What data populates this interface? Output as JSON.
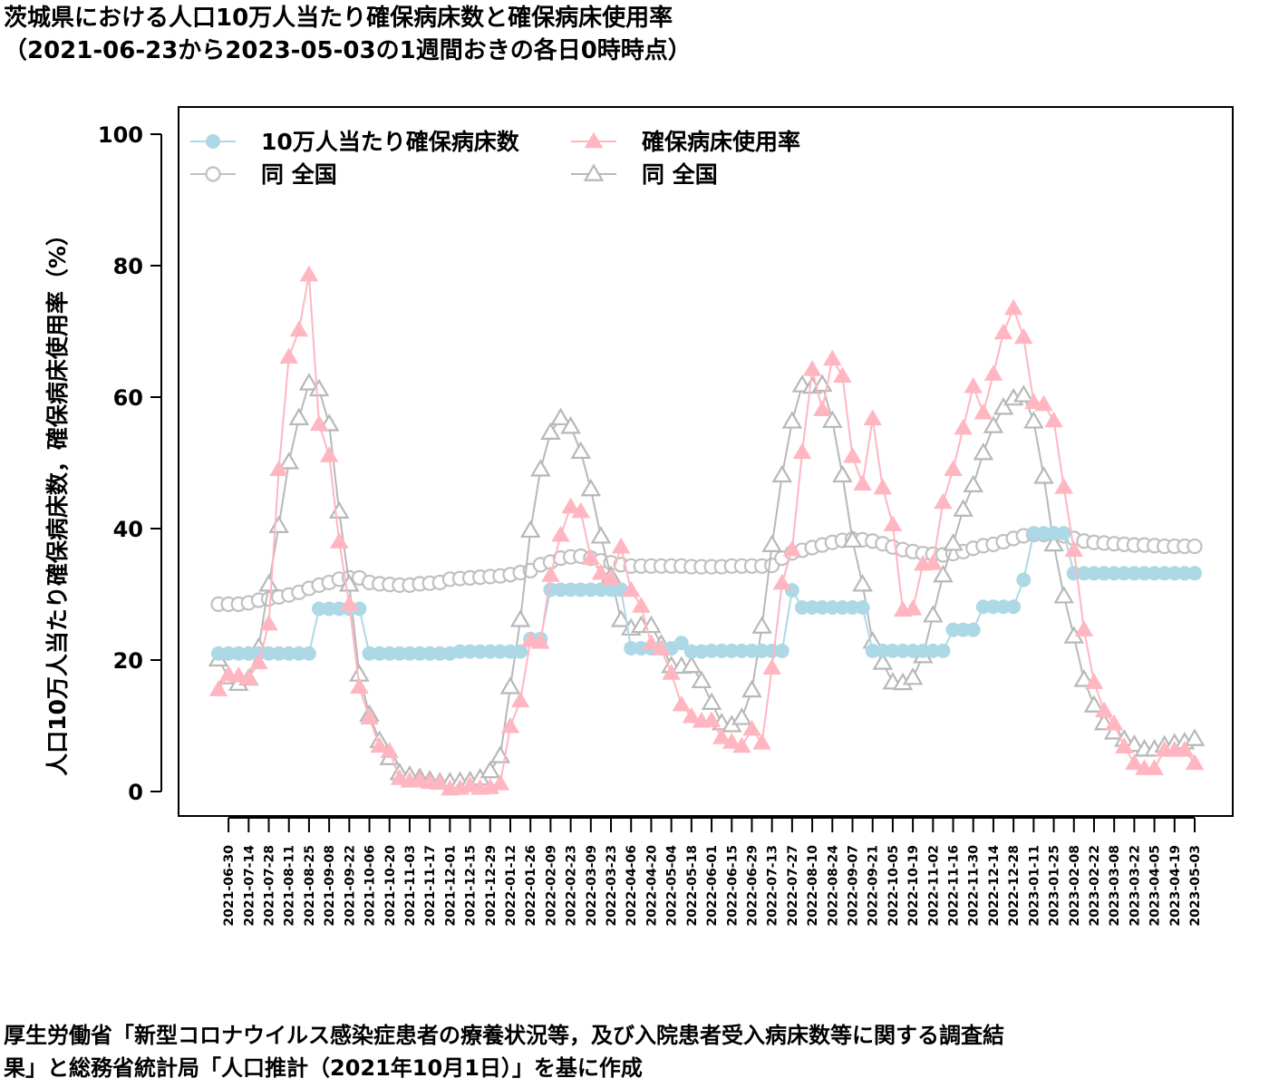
{
  "title": "茨城県における人口10万人当たり確保病床数と確保病床使用率",
  "subtitle": "（2021-06-23から2023-05-03の1週間おきの各日0時時点）",
  "caption": {
    "line1": "厚生労働省「新型コロナウイルス感染症患者の療養状況等，及び入院患者受入病床数等に関する調査結",
    "line2": "果」と総務省統計局「人口推計（2021年10月1日）」を基に作成"
  },
  "chart_data": {
    "type": "line",
    "ylabel": "人口10万人当たり確保病床数，確保病床使用率（%）",
    "ylim": [
      0,
      100
    ],
    "yticks": [
      0,
      20,
      40,
      60,
      80,
      100
    ],
    "grid": false,
    "legend_position": "top-left",
    "x": [
      "2021-06-23",
      "2021-06-30",
      "2021-07-07",
      "2021-07-14",
      "2021-07-21",
      "2021-07-28",
      "2021-08-04",
      "2021-08-11",
      "2021-08-18",
      "2021-08-25",
      "2021-09-01",
      "2021-09-08",
      "2021-09-15",
      "2021-09-22",
      "2021-09-29",
      "2021-10-06",
      "2021-10-13",
      "2021-10-20",
      "2021-10-27",
      "2021-11-03",
      "2021-11-10",
      "2021-11-17",
      "2021-11-24",
      "2021-12-01",
      "2021-12-08",
      "2021-12-15",
      "2021-12-22",
      "2021-12-29",
      "2022-01-05",
      "2022-01-12",
      "2022-01-19",
      "2022-01-26",
      "2022-02-02",
      "2022-02-09",
      "2022-02-16",
      "2022-02-23",
      "2022-03-02",
      "2022-03-09",
      "2022-03-16",
      "2022-03-23",
      "2022-03-30",
      "2022-04-06",
      "2022-04-13",
      "2022-04-20",
      "2022-04-27",
      "2022-05-04",
      "2022-05-11",
      "2022-05-18",
      "2022-05-25",
      "2022-06-01",
      "2022-06-08",
      "2022-06-15",
      "2022-06-22",
      "2022-06-29",
      "2022-07-06",
      "2022-07-13",
      "2022-07-20",
      "2022-07-27",
      "2022-08-03",
      "2022-08-10",
      "2022-08-17",
      "2022-08-24",
      "2022-08-31",
      "2022-09-07",
      "2022-09-14",
      "2022-09-21",
      "2022-09-28",
      "2022-10-05",
      "2022-10-12",
      "2022-10-19",
      "2022-10-26",
      "2022-11-02",
      "2022-11-09",
      "2022-11-16",
      "2022-11-23",
      "2022-11-30",
      "2022-12-07",
      "2022-12-14",
      "2022-12-21",
      "2022-12-28",
      "2023-01-04",
      "2023-01-11",
      "2023-01-18",
      "2023-01-25",
      "2023-02-01",
      "2023-02-08",
      "2023-02-15",
      "2023-02-22",
      "2023-03-01",
      "2023-03-08",
      "2023-03-15",
      "2023-03-22",
      "2023-03-29",
      "2023-04-05",
      "2023-04-12",
      "2023-04-19",
      "2023-04-26",
      "2023-05-03"
    ],
    "xtick_labels": [
      "2021-06-30",
      "2021-07-14",
      "2021-07-28",
      "2021-08-11",
      "2021-08-25",
      "2021-09-08",
      "2021-09-22",
      "2021-10-06",
      "2021-10-20",
      "2021-11-03",
      "2021-11-17",
      "2021-12-01",
      "2021-12-15",
      "2021-12-29",
      "2022-01-12",
      "2022-01-26",
      "2022-02-09",
      "2022-02-23",
      "2022-03-09",
      "2022-03-23",
      "2022-04-06",
      "2022-04-20",
      "2022-05-04",
      "2022-05-18",
      "2022-06-01",
      "2022-06-15",
      "2022-06-29",
      "2022-07-13",
      "2022-07-27",
      "2022-08-10",
      "2022-08-24",
      "2022-09-07",
      "2022-09-21",
      "2022-10-05",
      "2022-10-19",
      "2022-11-02",
      "2022-11-16",
      "2022-11-30",
      "2022-12-14",
      "2022-12-28",
      "2023-01-11",
      "2023-01-25",
      "2023-02-08",
      "2023-02-22",
      "2023-03-08",
      "2023-03-22",
      "2023-04-05",
      "2023-04-19",
      "2023-05-03"
    ],
    "series": [
      {
        "name": "10万人当たり確保病床数",
        "color": "#add8e6",
        "marker": "filled-circle",
        "values": [
          21,
          21,
          21,
          21,
          21,
          21,
          21,
          21,
          21,
          21,
          27.8,
          27.8,
          27.8,
          27.8,
          27.8,
          21,
          21,
          21,
          21,
          21,
          21,
          21,
          21,
          21,
          21.3,
          21.3,
          21.3,
          21.3,
          21.3,
          21.3,
          21.3,
          23.2,
          23.2,
          30.7,
          30.7,
          30.7,
          30.7,
          30.7,
          30.7,
          30.7,
          30.7,
          21.8,
          21.8,
          21.8,
          21.8,
          21.8,
          22.6,
          21.3,
          21.3,
          21.4,
          21.4,
          21.4,
          21.4,
          21.4,
          21.4,
          21.4,
          21.4,
          30.6,
          28,
          28,
          28,
          28,
          28,
          28,
          28,
          21.4,
          21.4,
          21.4,
          21.4,
          21.4,
          21.4,
          21.4,
          21.4,
          24.6,
          24.6,
          24.6,
          28.1,
          28.1,
          28.1,
          28.1,
          32.2,
          39.3,
          39.3,
          39.3,
          39.3,
          33.2,
          33.2,
          33.2,
          33.2,
          33.2,
          33.2,
          33.2,
          33.2,
          33.2,
          33.2,
          33.2,
          33.2,
          33.2
        ]
      },
      {
        "name": "同 全国",
        "color": "#c0c0c0",
        "marker": "open-circle",
        "values": [
          28.5,
          28.5,
          28.5,
          28.7,
          29.1,
          29.3,
          29.6,
          29.9,
          30.3,
          30.9,
          31.4,
          31.8,
          32.3,
          32.5,
          32.5,
          31.8,
          31.6,
          31.5,
          31.4,
          31.4,
          31.6,
          31.7,
          31.8,
          32.3,
          32.4,
          32.5,
          32.6,
          32.7,
          32.8,
          33,
          33.3,
          33.6,
          34.5,
          34.9,
          35.5,
          35.7,
          35.8,
          35.5,
          35.1,
          34.8,
          34.5,
          34.3,
          34.3,
          34.3,
          34.3,
          34.3,
          34.3,
          34.2,
          34.2,
          34.2,
          34.2,
          34.3,
          34.3,
          34.3,
          34.3,
          34.4,
          35.5,
          36.3,
          36.7,
          37.1,
          37.5,
          37.9,
          38.2,
          38.4,
          38.3,
          38.1,
          37.7,
          37.2,
          36.8,
          36.5,
          36.2,
          36.1,
          36,
          36.2,
          36.5,
          37,
          37.4,
          37.6,
          38,
          38.5,
          38.9,
          39.1,
          39.1,
          39.1,
          38.9,
          38.5,
          38.1,
          37.9,
          37.8,
          37.7,
          37.6,
          37.5,
          37.5,
          37.4,
          37.3,
          37.3,
          37.3,
          37.3
        ]
      },
      {
        "name": "確保病床使用率",
        "color": "#ffb6c1",
        "marker": "filled-triangle",
        "values": [
          15.5,
          17.8,
          17.6,
          17.2,
          19.6,
          25.5,
          49,
          66.1,
          70.2,
          78.6,
          55.9,
          51.1,
          38,
          28.5,
          15.9,
          11.2,
          6.9,
          6.1,
          2,
          1.6,
          1.7,
          1.4,
          1.3,
          0.4,
          0.5,
          0.9,
          0.5,
          0.6,
          1.2,
          9.9,
          13.8,
          23,
          22.7,
          32.9,
          39,
          43.3,
          42.6,
          35.5,
          33.2,
          32.3,
          37.2,
          30.6,
          28.2,
          22.5,
          21.7,
          18,
          13.2,
          11.4,
          10.7,
          10.8,
          8.2,
          7.5,
          6.9,
          9.5,
          7.4,
          18.8,
          31.7,
          36.8,
          51.6,
          64.2,
          58.1,
          65.8,
          63.2,
          51,
          46.8,
          56.7,
          46.2,
          40.6,
          27.6,
          27.8,
          34.6,
          34.7,
          44,
          49,
          55.3,
          61.6,
          57.6,
          63.5,
          69.8,
          73.5,
          69.1,
          59.2,
          58.9,
          56.4,
          46.3,
          36.7,
          24.6,
          16.6,
          12.3,
          10.3,
          6.8,
          4.3,
          3.5,
          3.5,
          6.3,
          6.3,
          6.3,
          4.3
        ]
      },
      {
        "name": "同 全国",
        "color": "#b8b8b8",
        "marker": "open-triangle",
        "values": [
          20.1,
          17.4,
          16.4,
          17.2,
          21.9,
          31.5,
          40.4,
          50.1,
          56.8,
          62.1,
          61.2,
          55.9,
          42.6,
          31.5,
          17.8,
          11.7,
          7.7,
          5.1,
          2.8,
          2.4,
          2.1,
          1.7,
          1.4,
          1.4,
          1.5,
          1.6,
          2,
          3.1,
          5.4,
          15.9,
          26.1,
          39.7,
          49,
          54.6,
          56.8,
          55.5,
          51.7,
          46,
          38.8,
          32.8,
          26.1,
          24.8,
          25.2,
          25.2,
          22.4,
          19.1,
          19,
          19.1,
          16.8,
          13.5,
          10.4,
          10.1,
          11.2,
          15.4,
          25.1,
          37.5,
          48.1,
          56.3,
          61.8,
          61.6,
          61.9,
          56.4,
          48.1,
          38.2,
          31.5,
          22.8,
          19.6,
          16.6,
          16.5,
          17.3,
          20.6,
          26.8,
          32.9,
          37.7,
          42.9,
          46.6,
          51.5,
          55.6,
          58.4,
          59.8,
          60.3,
          56.3,
          47.9,
          37.6,
          29.7,
          23.6,
          17,
          13.1,
          10.4,
          9,
          7.9,
          7.1,
          6.4,
          6.4,
          7,
          7.3,
          7.5,
          8
        ]
      }
    ]
  }
}
